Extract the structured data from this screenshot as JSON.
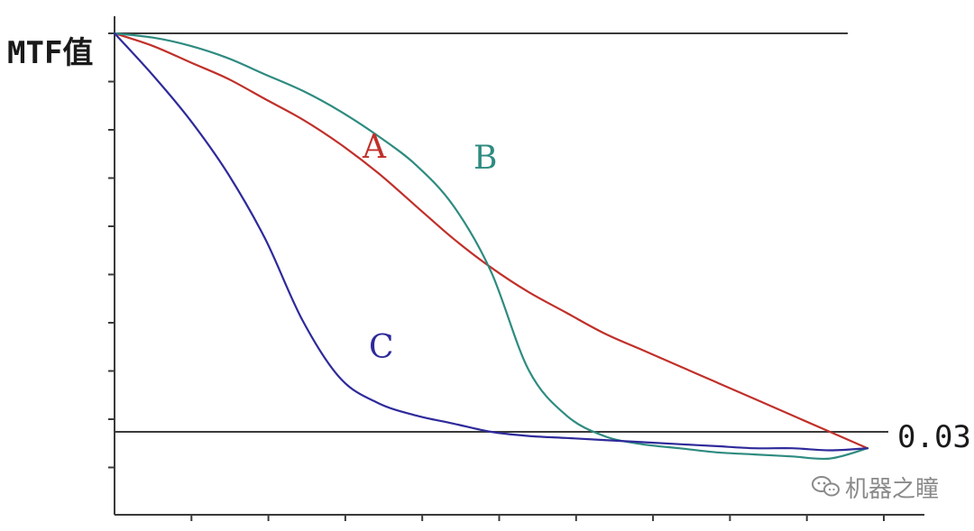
{
  "chart_data": {
    "type": "line",
    "ylabel": "MTF值",
    "xlabel": "",
    "grid": false,
    "reference_lines": [
      {
        "label": "",
        "value": 1.0
      },
      {
        "label": "0.03",
        "value": 0.03
      }
    ],
    "series": [
      {
        "name": "A",
        "color": "#c0302a",
        "x": [
          0,
          0.05,
          0.1,
          0.15,
          0.2,
          0.25,
          0.3,
          0.35,
          0.4,
          0.45,
          0.5,
          0.55,
          0.6,
          0.65,
          0.7,
          0.75,
          0.8,
          0.85,
          0.9,
          0.95,
          1.0
        ],
        "y": [
          1.0,
          0.97,
          0.93,
          0.89,
          0.84,
          0.79,
          0.73,
          0.66,
          0.58,
          0.5,
          0.43,
          0.37,
          0.32,
          0.27,
          0.23,
          0.19,
          0.15,
          0.11,
          0.07,
          0.03,
          -0.01
        ]
      },
      {
        "name": "B",
        "color": "#2e8b80",
        "x": [
          0,
          0.05,
          0.1,
          0.15,
          0.2,
          0.25,
          0.3,
          0.35,
          0.4,
          0.45,
          0.5,
          0.55,
          0.6,
          0.65,
          0.7,
          0.75,
          0.8,
          0.85,
          0.9,
          0.95,
          1.0
        ],
        "y": [
          1.0,
          0.99,
          0.97,
          0.94,
          0.9,
          0.86,
          0.81,
          0.75,
          0.68,
          0.58,
          0.42,
          0.18,
          0.07,
          0.02,
          0.0,
          -0.01,
          -0.02,
          -0.025,
          -0.03,
          -0.035,
          -0.01
        ]
      },
      {
        "name": "C",
        "color": "#2e2a9a",
        "x": [
          0,
          0.05,
          0.1,
          0.15,
          0.2,
          0.25,
          0.3,
          0.35,
          0.4,
          0.45,
          0.5,
          0.55,
          0.6,
          0.65,
          0.7,
          0.75,
          0.8,
          0.85,
          0.9,
          0.95,
          1.0
        ],
        "y": [
          1.0,
          0.9,
          0.79,
          0.66,
          0.5,
          0.3,
          0.16,
          0.1,
          0.07,
          0.05,
          0.03,
          0.02,
          0.015,
          0.01,
          0.005,
          0.0,
          -0.005,
          -0.01,
          -0.01,
          -0.015,
          -0.01
        ]
      }
    ],
    "curve_labels": [
      {
        "text": "A",
        "color": "#c0302a"
      },
      {
        "text": "B",
        "color": "#2e8b80"
      },
      {
        "text": "C",
        "color": "#2e2a9a"
      }
    ]
  },
  "watermark": {
    "text": "机器之瞳",
    "icon": "wechat-icon",
    "color": "#8a8a8a"
  }
}
